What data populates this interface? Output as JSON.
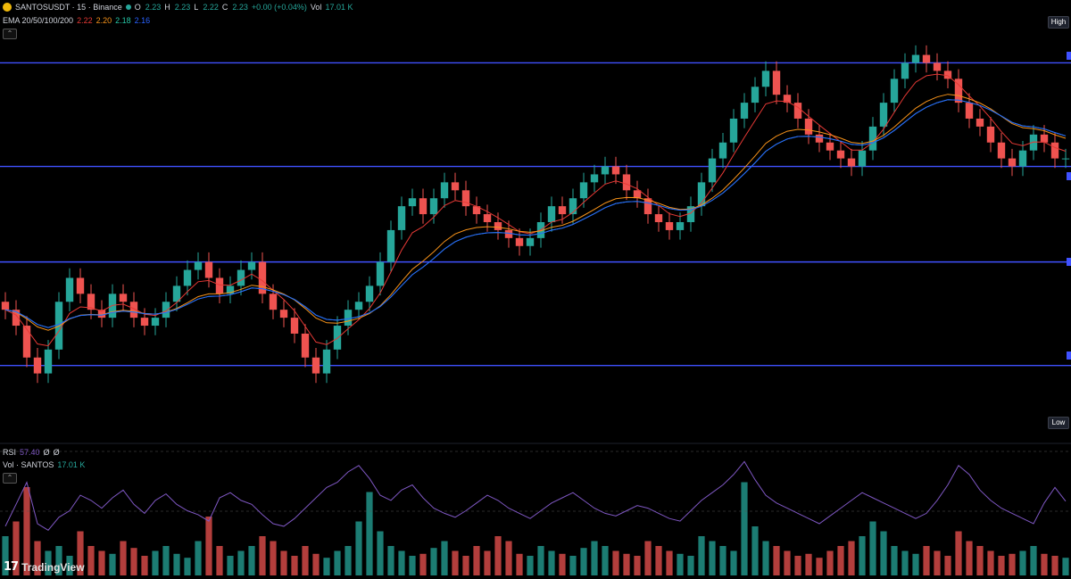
{
  "header": {
    "symbol": "SANTOSUSDT · 15 · Binance",
    "open": "2.23",
    "high": "2.23",
    "low": "2.22",
    "close": "2.23",
    "change": "+0.00 (+0.04%)",
    "volume": "17.01 K"
  },
  "ema": {
    "label": "EMA 20/50/100/200",
    "values": [
      "2.22",
      "2.20",
      "2.18",
      "2.16"
    ],
    "colors": [
      "#e53935",
      "#f7931a",
      "#26c6a6",
      "#2962ff"
    ]
  },
  "rsi": {
    "label": "RSI",
    "value": "57.40",
    "extra1": "Ø",
    "extra2": "Ø",
    "color": "#7e57c2"
  },
  "volume": {
    "label": "Vol · SANTOS",
    "value": "17.01 K"
  },
  "pills": {
    "high": "High",
    "low": "Low"
  },
  "brand": {
    "logo_mark": "17",
    "name": "TradingView"
  },
  "colors": {
    "up": "#26a69a",
    "down": "#ef5350",
    "level": "#3f51ff",
    "background": "#000000"
  },
  "chart_data": {
    "type": "candlestick",
    "levels": [
      2.35,
      2.22,
      2.1,
      1.97
    ],
    "ylim": [
      1.88,
      2.42
    ],
    "close": [
      2.04,
      2.02,
      1.98,
      1.96,
      1.99,
      2.05,
      2.08,
      2.06,
      2.04,
      2.03,
      2.06,
      2.05,
      2.03,
      2.02,
      2.03,
      2.05,
      2.07,
      2.09,
      2.1,
      2.08,
      2.06,
      2.07,
      2.09,
      2.1,
      2.06,
      2.04,
      2.03,
      2.01,
      1.98,
      1.96,
      1.99,
      2.02,
      2.04,
      2.05,
      2.07,
      2.1,
      2.14,
      2.17,
      2.18,
      2.16,
      2.18,
      2.2,
      2.19,
      2.17,
      2.16,
      2.15,
      2.14,
      2.13,
      2.12,
      2.13,
      2.15,
      2.17,
      2.16,
      2.18,
      2.2,
      2.21,
      2.22,
      2.21,
      2.19,
      2.18,
      2.16,
      2.15,
      2.14,
      2.15,
      2.17,
      2.2,
      2.23,
      2.25,
      2.28,
      2.3,
      2.32,
      2.34,
      2.31,
      2.3,
      2.28,
      2.26,
      2.25,
      2.24,
      2.23,
      2.22,
      2.24,
      2.27,
      2.3,
      2.33,
      2.35,
      2.36,
      2.35,
      2.34,
      2.33,
      2.3,
      2.28,
      2.27,
      2.25,
      2.23,
      2.22,
      2.24,
      2.26,
      2.25,
      2.23,
      2.23
    ],
    "volume": [
      0.4,
      0.55,
      0.9,
      0.35,
      0.25,
      0.3,
      0.2,
      0.45,
      0.3,
      0.25,
      0.22,
      0.35,
      0.28,
      0.2,
      0.25,
      0.3,
      0.22,
      0.18,
      0.35,
      0.6,
      0.3,
      0.2,
      0.25,
      0.3,
      0.4,
      0.35,
      0.25,
      0.2,
      0.3,
      0.22,
      0.18,
      0.25,
      0.3,
      0.55,
      0.85,
      0.45,
      0.3,
      0.25,
      0.2,
      0.22,
      0.28,
      0.35,
      0.25,
      0.2,
      0.3,
      0.25,
      0.4,
      0.35,
      0.22,
      0.2,
      0.3,
      0.25,
      0.22,
      0.2,
      0.28,
      0.35,
      0.3,
      0.25,
      0.22,
      0.2,
      0.35,
      0.3,
      0.25,
      0.22,
      0.2,
      0.4,
      0.35,
      0.3,
      0.25,
      0.95,
      0.5,
      0.35,
      0.3,
      0.25,
      0.2,
      0.22,
      0.18,
      0.25,
      0.3,
      0.35,
      0.4,
      0.55,
      0.45,
      0.3,
      0.25,
      0.22,
      0.3,
      0.25,
      0.2,
      0.45,
      0.35,
      0.3,
      0.25,
      0.2,
      0.22,
      0.25,
      0.3,
      0.22,
      0.2,
      0.18
    ],
    "rsi": [
      38,
      55,
      72,
      40,
      35,
      45,
      50,
      62,
      58,
      52,
      60,
      66,
      55,
      48,
      58,
      63,
      55,
      50,
      47,
      42,
      60,
      64,
      58,
      55,
      47,
      40,
      38,
      44,
      52,
      60,
      68,
      72,
      80,
      85,
      75,
      62,
      58,
      66,
      70,
      60,
      52,
      48,
      45,
      50,
      56,
      62,
      58,
      52,
      48,
      44,
      50,
      56,
      60,
      64,
      58,
      52,
      48,
      46,
      50,
      54,
      52,
      48,
      44,
      42,
      50,
      58,
      64,
      70,
      78,
      88,
      74,
      62,
      56,
      52,
      48,
      44,
      40,
      46,
      52,
      58,
      64,
      60,
      56,
      52,
      48,
      44,
      48,
      58,
      70,
      85,
      78,
      66,
      58,
      52,
      48,
      44,
      40,
      56,
      68,
      57.4
    ],
    "rsi_range": [
      0,
      100
    ]
  }
}
